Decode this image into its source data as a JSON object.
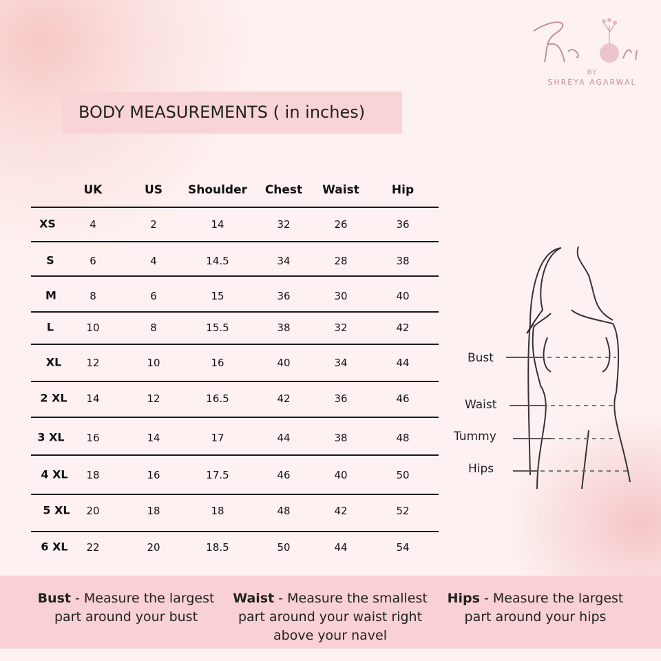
{
  "brand": {
    "logo_text": "Kaori",
    "by": "BY",
    "designer": "SHREYA AGARWAL"
  },
  "title": "BODY MEASUREMENTS ( in inches)",
  "table": {
    "headers": [
      "UK",
      "US",
      "Shoulder",
      "Chest",
      "Waist",
      "Hip"
    ],
    "rows": [
      {
        "size": "XS",
        "values": [
          "4",
          "2",
          "14",
          "32",
          "26",
          "36"
        ]
      },
      {
        "size": "S",
        "values": [
          "6",
          "4",
          "14.5",
          "34",
          "28",
          "38"
        ]
      },
      {
        "size": "M",
        "values": [
          "8",
          "6",
          "15",
          "36",
          "30",
          "40"
        ]
      },
      {
        "size": "L",
        "values": [
          "10",
          "8",
          "15.5",
          "38",
          "32",
          "42"
        ]
      },
      {
        "size": "XL",
        "values": [
          "12",
          "10",
          "16",
          "40",
          "34",
          "44"
        ]
      },
      {
        "size": "2 XL",
        "values": [
          "14",
          "12",
          "16.5",
          "42",
          "36",
          "46"
        ]
      },
      {
        "size": "3 XL",
        "values": [
          "16",
          "14",
          "17",
          "44",
          "38",
          "48"
        ]
      },
      {
        "size": "4 XL",
        "values": [
          "18",
          "16",
          "17.5",
          "46",
          "40",
          "50"
        ]
      },
      {
        "size": "5 XL",
        "values": [
          "20",
          "18",
          "18",
          "48",
          "42",
          "52"
        ]
      },
      {
        "size": "6 XL",
        "values": [
          "22",
          "20",
          "18.5",
          "50",
          "44",
          "54"
        ]
      }
    ]
  },
  "figure": {
    "labels": [
      "Bust",
      "Waist",
      "Tummy",
      "Hips"
    ]
  },
  "notes": [
    {
      "term": "Bust",
      "text": " - Measure the largest part around your bust"
    },
    {
      "term": "Waist",
      "text": " - Measure the smallest part around your waist right above your navel"
    },
    {
      "term": "Hips",
      "text": " - Measure the largest part around your hips"
    }
  ],
  "colors": {
    "title_bg": "#f9d4d6",
    "band_bg": "#f9d0d3",
    "logo": "#c48f9a"
  }
}
